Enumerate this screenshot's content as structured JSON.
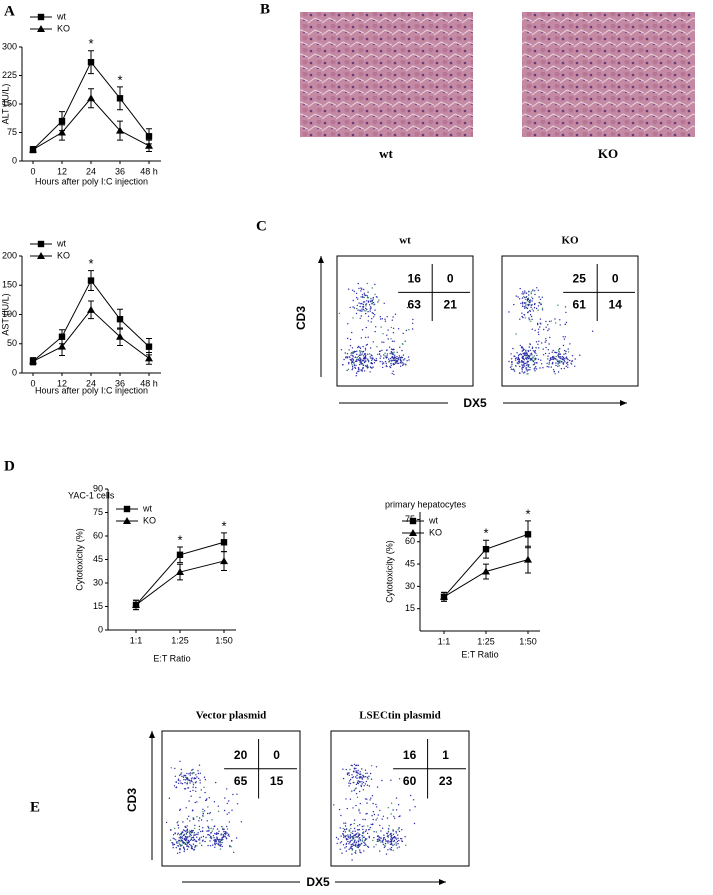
{
  "panel_labels": [
    "A",
    "B",
    "C",
    "D",
    "E"
  ],
  "chart_data": [
    {
      "type": "line",
      "ylabel": "ALT (IU/L)",
      "xlabel": "Hours after poly I:C injection",
      "categories": [
        "0",
        "12",
        "24",
        "36",
        "48 h"
      ],
      "series": [
        {
          "name": "wt",
          "color": "#000000",
          "marker": "square",
          "values": [
            30,
            105,
            260,
            165,
            65
          ],
          "errors": [
            8,
            25,
            30,
            30,
            20
          ]
        },
        {
          "name": "KO",
          "color": "#000000",
          "marker": "triangle",
          "values": [
            30,
            75,
            165,
            80,
            40
          ],
          "errors": [
            8,
            20,
            25,
            25,
            15
          ]
        }
      ],
      "ylim": [
        0,
        300
      ],
      "yticks": [
        0,
        75,
        150,
        225,
        300
      ],
      "grid": false,
      "legend": "upper left",
      "annotations": [
        {
          "text": "*",
          "x": "24"
        },
        {
          "text": "*",
          "x": "36"
        }
      ]
    },
    {
      "type": "line",
      "ylabel": "AST (IU/L)",
      "xlabel": "Hours after poly I:C injection",
      "categories": [
        "0",
        "12",
        "24",
        "36",
        "48 h"
      ],
      "series": [
        {
          "name": "wt",
          "color": "#000000",
          "marker": "square",
          "values": [
            20,
            62,
            158,
            92,
            45
          ],
          "errors": [
            6,
            12,
            17,
            17,
            14
          ]
        },
        {
          "name": "KO",
          "color": "#000000",
          "marker": "triangle",
          "values": [
            20,
            45,
            108,
            62,
            25
          ],
          "errors": [
            6,
            15,
            15,
            15,
            10
          ]
        }
      ],
      "ylim": [
        0,
        200
      ],
      "yticks": [
        0,
        50,
        100,
        150,
        200
      ],
      "grid": false,
      "legend": "upper left",
      "annotations": [
        {
          "text": "*",
          "x": "24"
        }
      ]
    },
    {
      "type": "line",
      "title": "YAC-1 cells",
      "ylabel": "Cytotoxicity (%)",
      "xlabel": "E:T Ratio",
      "categories": [
        "1:1",
        "1:25",
        "1:50"
      ],
      "series": [
        {
          "name": "wt",
          "color": "#000000",
          "marker": "square",
          "values": [
            16,
            48,
            56
          ],
          "errors": [
            3,
            5,
            6
          ]
        },
        {
          "name": "KO",
          "color": "#000000",
          "marker": "triangle",
          "values": [
            16,
            37,
            44
          ],
          "errors": [
            3,
            5,
            6
          ]
        }
      ],
      "ylim": [
        0,
        90
      ],
      "yticks": [
        0,
        15,
        30,
        45,
        60,
        75,
        90
      ],
      "grid": false,
      "legend": "upper left",
      "annotations": [
        {
          "text": "*",
          "x": "1:25"
        },
        {
          "text": "*",
          "x": "1:50"
        }
      ]
    },
    {
      "type": "line",
      "title": "primary hepatocytes",
      "ylabel": "Cytotoxicity (%)",
      "xlabel": "E:T Ratio",
      "categories": [
        "1:1",
        "1:25",
        "1:50"
      ],
      "series": [
        {
          "name": "wt",
          "color": "#000000",
          "marker": "square",
          "values": [
            23,
            55,
            65
          ],
          "errors": [
            3,
            6,
            9
          ]
        },
        {
          "name": "KO",
          "color": "#000000",
          "marker": "triangle",
          "values": [
            23,
            40,
            48
          ],
          "errors": [
            3,
            5,
            9
          ]
        }
      ],
      "ylim": [
        0,
        80
      ],
      "yticks": [
        15,
        30,
        45,
        60,
        75
      ],
      "grid": false,
      "legend": "upper left",
      "annotations": [
        {
          "text": "*",
          "x": "1:25"
        },
        {
          "text": "*",
          "x": "1:50"
        }
      ]
    }
  ],
  "histology": {
    "images": [
      {
        "label": "wt"
      },
      {
        "label": "KO"
      }
    ]
  },
  "flow_c": {
    "y_axis_label": "CD3",
    "x_axis_label": "DX5",
    "plots": [
      {
        "title": "wt",
        "quadrants": [
          16,
          0,
          63,
          21
        ]
      },
      {
        "title": "KO",
        "quadrants": [
          25,
          0,
          61,
          14
        ]
      }
    ]
  },
  "flow_e": {
    "y_axis_label": "CD3",
    "x_axis_label": "DX5",
    "plots": [
      {
        "title": "Vector plasmid",
        "quadrants": [
          20,
          0,
          65,
          15
        ]
      },
      {
        "title": "LSECtin plasmid",
        "quadrants": [
          16,
          1,
          60,
          23
        ]
      }
    ]
  }
}
